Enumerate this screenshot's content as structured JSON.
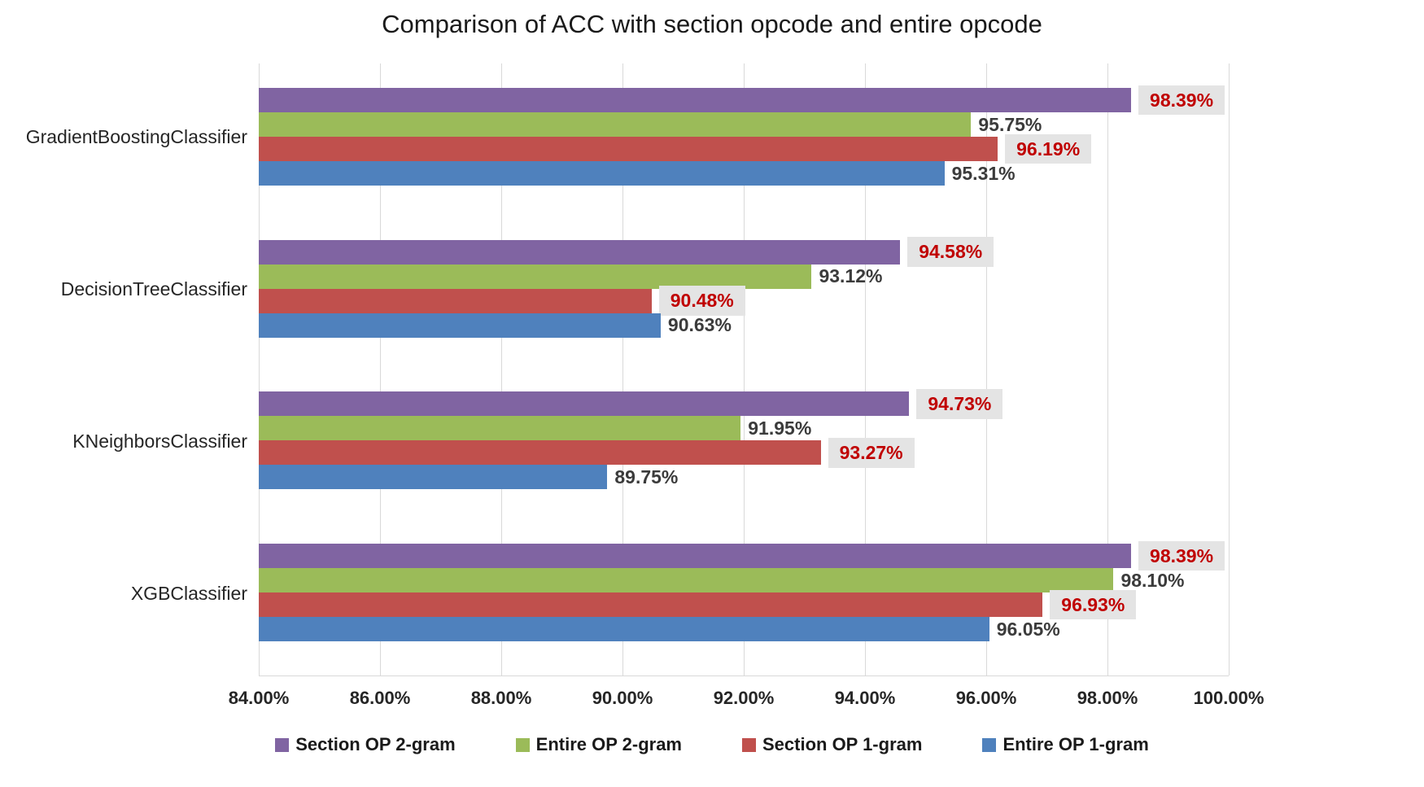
{
  "title": "Comparison of ACC with section opcode and entire opcode",
  "chart_data": {
    "type": "bar",
    "orientation": "horizontal",
    "title": "Comparison of ACC with section opcode and entire opcode",
    "categories": [
      "GradientBoostingClassifier",
      "DecisionTreeClassifier",
      "KNeighborsClassifier",
      "XGBClassifier"
    ],
    "series": [
      {
        "name": "Section OP 2-gram",
        "color": "#8064A2",
        "values": [
          98.39,
          94.58,
          94.73,
          98.39
        ],
        "labels": [
          "98.39%",
          "94.58%",
          "94.73%",
          "98.39%"
        ],
        "label_style": "red-boxed"
      },
      {
        "name": "Entire OP 2-gram",
        "color": "#9BBB59",
        "values": [
          95.75,
          93.12,
          91.95,
          98.1
        ],
        "labels": [
          "95.75%",
          "93.12%",
          "91.95%",
          "98.10%"
        ],
        "label_style": "plain"
      },
      {
        "name": "Section OP 1-gram",
        "color": "#C0504D",
        "values": [
          96.19,
          90.48,
          93.27,
          96.93
        ],
        "labels": [
          "96.19%",
          "90.48%",
          "93.27%",
          "96.93%"
        ],
        "label_style": "red-boxed"
      },
      {
        "name": "Entire OP 1-gram",
        "color": "#4F81BD",
        "values": [
          95.31,
          90.63,
          89.75,
          96.05
        ],
        "labels": [
          "95.31%",
          "90.63%",
          "89.75%",
          "96.05%"
        ],
        "label_style": "plain"
      }
    ],
    "xlabel": "",
    "ylabel": "",
    "xlim": [
      84,
      100
    ],
    "x_tick_step": 2,
    "x_ticks": [
      "84.00%",
      "86.00%",
      "88.00%",
      "90.00%",
      "92.00%",
      "94.00%",
      "96.00%",
      "98.00%",
      "100.00%"
    ],
    "grid": true,
    "gridline_color": "#d9d9d9",
    "legend_position": "bottom",
    "label_colors": {
      "red_text": "#C00000",
      "label_bg": "#E4E4E4",
      "plain_text": "#3B3B3B"
    }
  }
}
